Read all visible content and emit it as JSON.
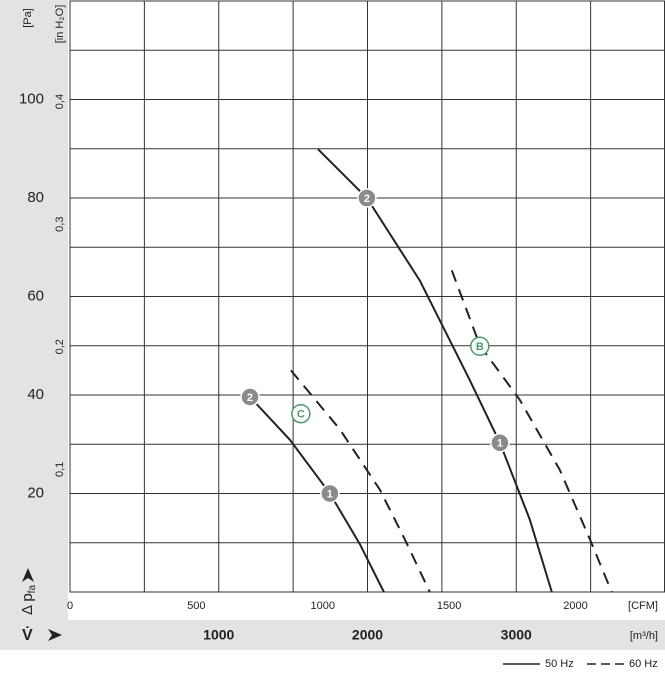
{
  "chart_data": {
    "type": "line",
    "x_label": "[m³/h]",
    "x2_label": "[CFM]",
    "x_symbol": "V̇",
    "y_label": "[Pa]",
    "y2_label": "[in H₂O]",
    "y_symbol": {
      "main": "Δ p",
      "sub": "fa"
    },
    "xlim": [
      0,
      4000
    ],
    "xticks": [
      1000,
      2000,
      3000
    ],
    "xgrid": [
      500,
      1000,
      1500,
      2000,
      2500,
      3000,
      3500
    ],
    "x2lim": [
      0,
      2354
    ],
    "x2ticks": [
      0,
      500,
      1000,
      1500,
      2000
    ],
    "ylim": [
      0,
      120
    ],
    "yticks": [
      20,
      40,
      60,
      80,
      100
    ],
    "ygrid": [
      10,
      20,
      30,
      40,
      50,
      60,
      70,
      80,
      90,
      100,
      110
    ],
    "y2lim": [
      0,
      0.482
    ],
    "y2ticks": [
      {
        "value": 0.1,
        "label": "0,1"
      },
      {
        "value": 0.2,
        "label": "0,2"
      },
      {
        "value": 0.3,
        "label": "0,3"
      },
      {
        "value": 0.4,
        "label": "0,4"
      }
    ],
    "color": "#222222",
    "series": [
      {
        "style": "solid",
        "x": [
          1210,
          1478,
          1747,
          1949,
          2110
        ],
        "values": [
          39.6,
          30.9,
          20,
          9.7,
          0
        ]
      },
      {
        "style": "dashed",
        "x": [
          1485,
          1815,
          2083,
          2251,
          2419
        ],
        "values": [
          45,
          33,
          20.8,
          10.7,
          0
        ]
      },
      {
        "style": "solid",
        "x": [
          1667,
          1996,
          2352,
          2688,
          2890,
          3091,
          3239
        ],
        "values": [
          89.9,
          80,
          63.2,
          43,
          30.3,
          14.7,
          0
        ]
      },
      {
        "style": "dashed",
        "x": [
          2567,
          2755,
          3024,
          3293,
          3495,
          3642
        ],
        "values": [
          65.3,
          50.1,
          39,
          24.8,
          10.7,
          0
        ]
      }
    ],
    "annotations": [
      {
        "text": "2",
        "x": 1210,
        "y": 39.6,
        "style": "filled"
      },
      {
        "text": "1",
        "x": 1747,
        "y": 20,
        "style": "filled"
      },
      {
        "text": "C",
        "x": 1552,
        "y": 36.2,
        "style": "outline"
      },
      {
        "text": "2",
        "x": 1996,
        "y": 80,
        "style": "filled"
      },
      {
        "text": "1",
        "x": 2890,
        "y": 30.3,
        "style": "filled"
      },
      {
        "text": "B",
        "x": 2755,
        "y": 49.9,
        "style": "outline"
      }
    ],
    "legend": [
      {
        "label": "50 Hz",
        "style": "solid"
      },
      {
        "label": "60 Hz",
        "style": "dashed"
      }
    ]
  }
}
